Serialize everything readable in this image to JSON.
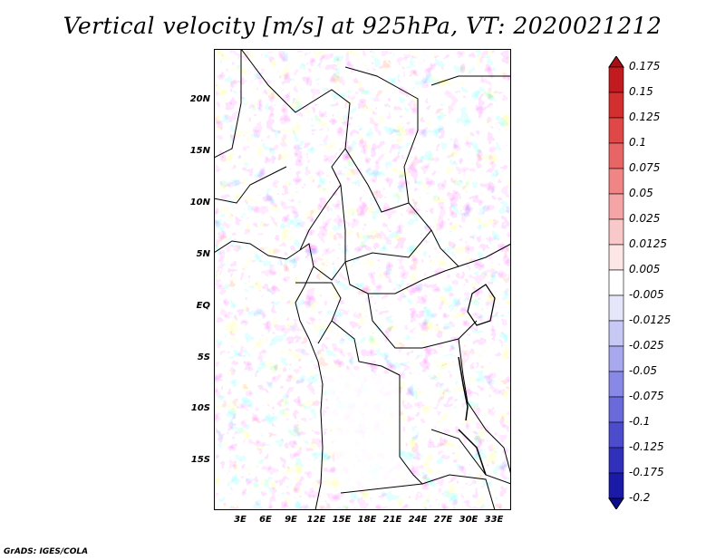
{
  "title": "Vertical velocity [m/s] at 925hPa, VT: 2020021212",
  "credit": "GrADS: IGES/COLA",
  "map": {
    "lat_labels": [
      "20N",
      "15N",
      "10N",
      "5N",
      "EQ",
      "5S",
      "10S",
      "15S"
    ],
    "lon_labels": [
      "3E",
      "6E",
      "9E",
      "12E",
      "15E",
      "18E",
      "21E",
      "24E",
      "27E",
      "30E",
      "33E"
    ],
    "colorbar": {
      "levels": [
        "0.175",
        "0.15",
        "0.125",
        "0.1",
        "0.075",
        "0.05",
        "0.025",
        "0.0125",
        "0.005",
        "-0.005",
        "-0.0125",
        "-0.025",
        "-0.05",
        "-0.075",
        "-0.1",
        "-0.125",
        "-0.175",
        "-0.2"
      ],
      "colors": [
        "#a50f15",
        "#c11a1f",
        "#d42f2f",
        "#e04848",
        "#e86565",
        "#ef8585",
        "#f5a5a5",
        "#f9c8c8",
        "#fde6e6",
        "#ffffff",
        "#e6e6fb",
        "#c8c8f5",
        "#a8a8ee",
        "#8888e6",
        "#6a6adb",
        "#4c4ccd",
        "#3030bb",
        "#1a1aa6",
        "#0c0c8f"
      ]
    }
  }
}
